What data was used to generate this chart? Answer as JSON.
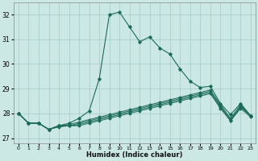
{
  "xlabel": "Humidex (Indice chaleur)",
  "ylabel": "",
  "bg_color": "#cce8e4",
  "grid_color": "#aacfcb",
  "line_color": "#1a6b5a",
  "xlim": [
    -0.5,
    23.5
  ],
  "ylim": [
    26.8,
    32.5
  ],
  "yticks": [
    27,
    28,
    29,
    30,
    31,
    32
  ],
  "xticks": [
    0,
    1,
    2,
    3,
    4,
    5,
    6,
    7,
    8,
    9,
    10,
    11,
    12,
    13,
    14,
    15,
    16,
    17,
    18,
    19,
    20,
    21,
    22,
    23
  ],
  "series": [
    [
      28.0,
      27.6,
      27.6,
      27.35,
      27.5,
      27.6,
      27.8,
      28.1,
      29.4,
      32.0,
      32.1,
      31.5,
      30.9,
      31.1,
      30.65,
      30.4,
      29.8,
      29.3,
      29.05,
      29.1,
      28.4,
      27.95,
      28.4,
      27.9
    ],
    [
      28.0,
      27.6,
      27.6,
      27.35,
      27.5,
      27.55,
      27.65,
      27.75,
      27.85,
      27.95,
      28.05,
      28.15,
      28.25,
      28.35,
      28.45,
      28.55,
      28.65,
      28.75,
      28.85,
      28.95,
      28.35,
      27.8,
      28.35,
      27.9
    ],
    [
      28.0,
      27.6,
      27.6,
      27.35,
      27.5,
      27.5,
      27.6,
      27.7,
      27.8,
      27.9,
      28.0,
      28.1,
      28.2,
      28.3,
      28.4,
      28.5,
      28.6,
      28.7,
      28.8,
      28.9,
      28.3,
      27.75,
      28.3,
      27.9
    ],
    [
      28.0,
      27.6,
      27.6,
      27.35,
      27.5,
      27.5,
      27.55,
      27.65,
      27.75,
      27.85,
      27.95,
      28.05,
      28.15,
      28.25,
      28.35,
      28.45,
      28.55,
      28.65,
      28.75,
      28.85,
      28.25,
      27.7,
      28.25,
      27.9
    ],
    [
      28.0,
      27.6,
      27.6,
      27.35,
      27.45,
      27.5,
      27.5,
      27.6,
      27.7,
      27.8,
      27.9,
      28.0,
      28.1,
      28.2,
      28.3,
      28.4,
      28.5,
      28.6,
      28.7,
      28.8,
      28.2,
      27.7,
      28.2,
      27.85
    ]
  ]
}
